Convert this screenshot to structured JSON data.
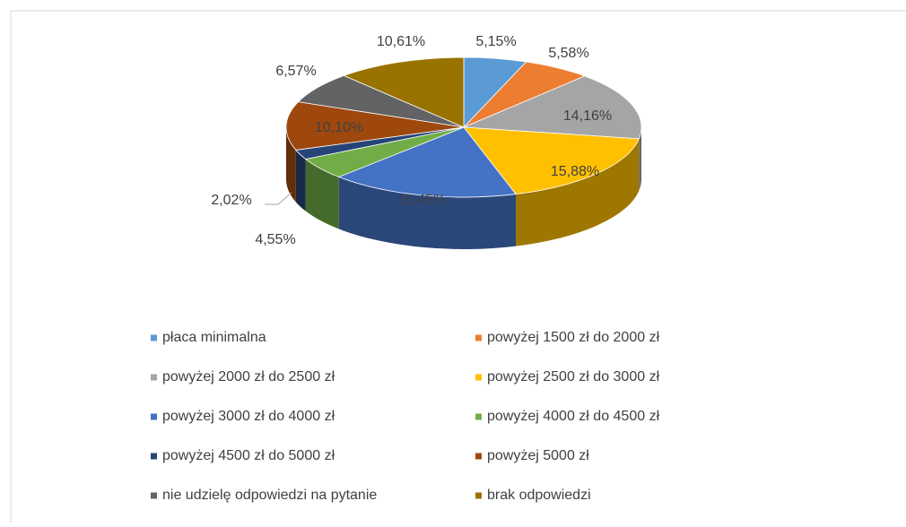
{
  "chart_data": {
    "type": "pie3d",
    "categories": [
      "płaca minimalna",
      "powyżej 1500 zł do 2000 zł",
      "powyżej 2000 zł do 2500 zł",
      "powyżej 2500 zł do 3000 zł",
      "powyżej 3000 zł do 4000 zł",
      "powyżej 4000 zł do 4500 zł",
      "powyżej 4500 zł do 5000 zł",
      "powyżej 5000 zł",
      "nie udzielę odpowiedzi na pytanie",
      "brak odpowiedzi"
    ],
    "values": [
      5.15,
      5.58,
      14.16,
      15.88,
      15.45,
      4.55,
      2.02,
      10.1,
      6.57,
      10.61
    ],
    "value_labels": [
      "5,15%",
      "5,58%",
      "14,16%",
      "15,88%",
      "15,45%",
      "4,55%",
      "2,02%",
      "10,10%",
      "6,57%",
      "10,61%"
    ],
    "colors": [
      "#5b9bd5",
      "#ed7d31",
      "#a5a5a5",
      "#ffc000",
      "#4472c4",
      "#70ad47",
      "#264478",
      "#9e480e",
      "#636363",
      "#997300"
    ],
    "legend": "bottom"
  }
}
